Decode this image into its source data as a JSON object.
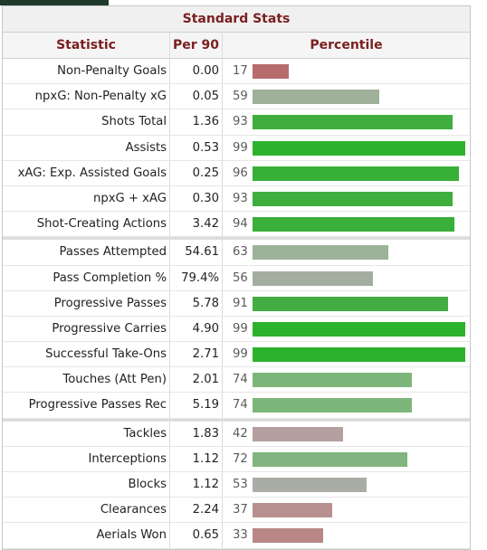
{
  "title": "Standard Stats",
  "headers": {
    "statistic": "Statistic",
    "per90": "Per 90",
    "percentile": "Percentile"
  },
  "groups": [
    [
      {
        "label": "Non-Penalty Goals",
        "per90": "0.00",
        "pct": 17,
        "color": "#b86b6b"
      },
      {
        "label": "npxG: Non-Penalty xG",
        "per90": "0.05",
        "pct": 59,
        "color": "#9fb09b"
      },
      {
        "label": "Shots Total",
        "per90": "1.36",
        "pct": 93,
        "color": "#3fae3f"
      },
      {
        "label": "Assists",
        "per90": "0.53",
        "pct": 99,
        "color": "#2db22d"
      },
      {
        "label": "xAG: Exp. Assisted Goals",
        "per90": "0.25",
        "pct": 96,
        "color": "#36b036"
      },
      {
        "label": "npxG + xAG",
        "per90": "0.30",
        "pct": 93,
        "color": "#3fae3f"
      },
      {
        "label": "Shot-Creating Actions",
        "per90": "3.42",
        "pct": 94,
        "color": "#3aaf3a"
      }
    ],
    [
      {
        "label": "Passes Attempted",
        "per90": "54.61",
        "pct": 63,
        "color": "#9cb39a"
      },
      {
        "label": "Pass Completion %",
        "per90": "79.4%",
        "pct": 56,
        "color": "#a3aea0"
      },
      {
        "label": "Progressive Passes",
        "per90": "5.78",
        "pct": 91,
        "color": "#43ad43"
      },
      {
        "label": "Progressive Carries",
        "per90": "4.90",
        "pct": 99,
        "color": "#2db22d"
      },
      {
        "label": "Successful Take-Ons",
        "per90": "2.71",
        "pct": 99,
        "color": "#2db22d"
      },
      {
        "label": "Touches (Att Pen)",
        "per90": "2.01",
        "pct": 74,
        "color": "#7db67b"
      },
      {
        "label": "Progressive Passes Rec",
        "per90": "5.19",
        "pct": 74,
        "color": "#7db67b"
      }
    ],
    [
      {
        "label": "Tackles",
        "per90": "1.83",
        "pct": 42,
        "color": "#b5a0a0"
      },
      {
        "label": "Interceptions",
        "per90": "1.12",
        "pct": 72,
        "color": "#82b47f"
      },
      {
        "label": "Blocks",
        "per90": "1.12",
        "pct": 53,
        "color": "#a9ada6"
      },
      {
        "label": "Clearances",
        "per90": "2.24",
        "pct": 37,
        "color": "#b78f8f"
      },
      {
        "label": "Aerials Won",
        "per90": "0.65",
        "pct": 33,
        "color": "#b88686"
      }
    ]
  ]
}
